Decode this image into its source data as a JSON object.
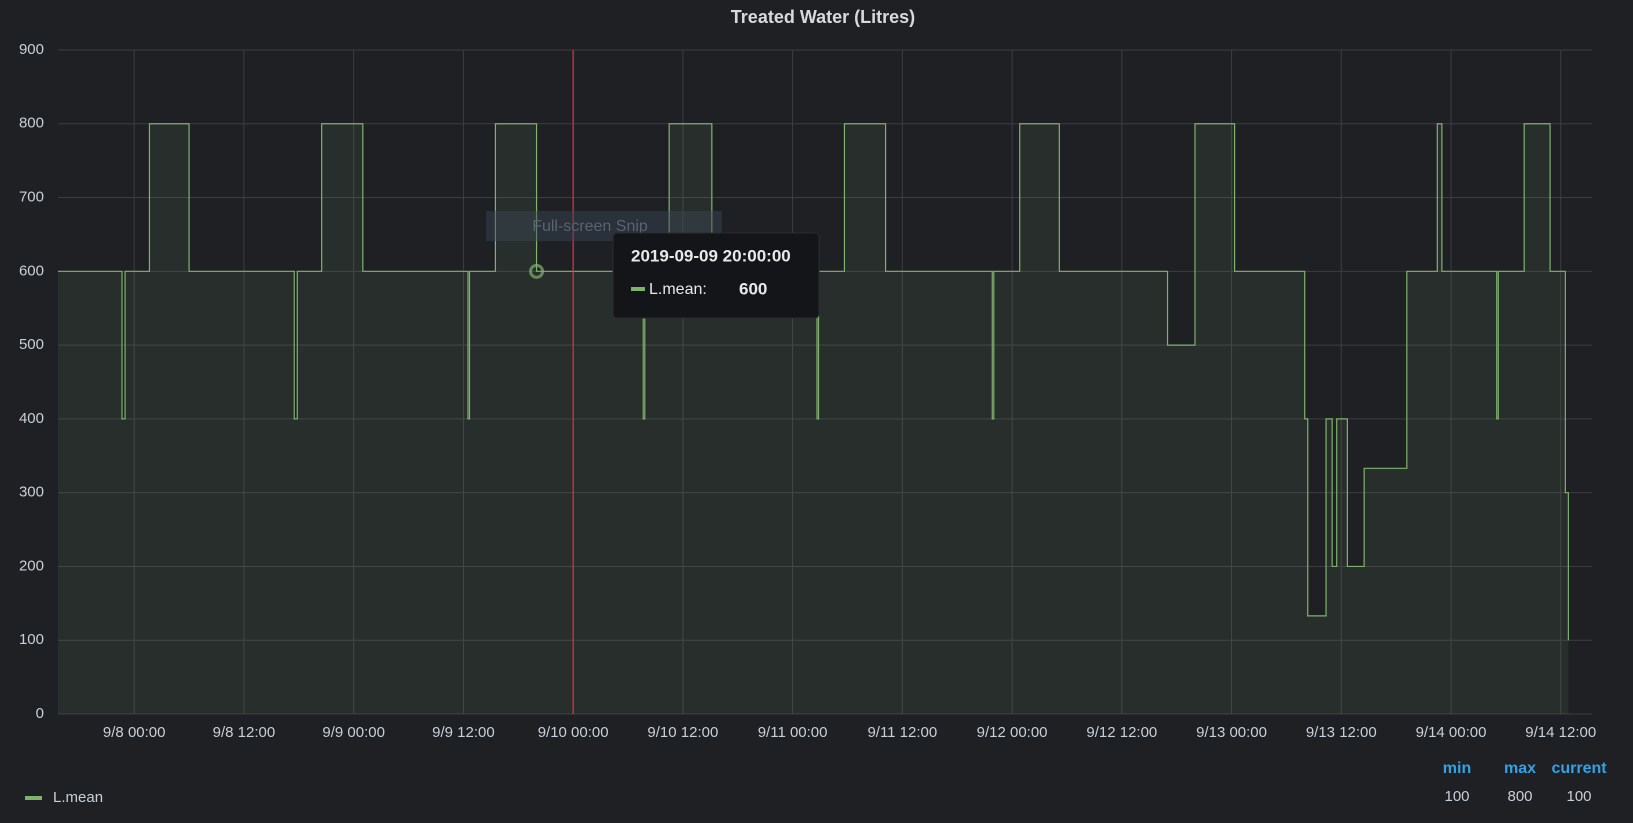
{
  "chart_data": {
    "type": "line",
    "step": true,
    "title": "Treated Water (Litres)",
    "xlim": [
      "9/7 15:40",
      "9/14 15:25"
    ],
    "xticks": [
      "9/8 00:00",
      "9/8 12:00",
      "9/9 00:00",
      "9/9 12:00",
      "9/10 00:00",
      "9/10 12:00",
      "9/11 00:00",
      "9/11 12:00",
      "9/12 00:00",
      "9/12 12:00",
      "9/13 00:00",
      "9/13 12:00",
      "9/14 00:00",
      "9/14 12:00"
    ],
    "ylim": [
      0,
      900
    ],
    "yticks": [
      0,
      100,
      200,
      300,
      400,
      500,
      600,
      700,
      800,
      900
    ],
    "grid": true,
    "x": [
      "9/7 15:40",
      "9/7 22:40",
      "9/7 23:00",
      "9/8 01:40",
      "9/8 06:00",
      "9/8 17:30",
      "9/8 17:50",
      "9/8 20:30",
      "9/9 01:00",
      "9/9 12:30",
      "9/9 12:40",
      "9/9 15:30",
      "9/9 20:00",
      "9/10 07:40",
      "9/10 07:50",
      "9/10 10:30",
      "9/10 15:10",
      "9/11 02:40",
      "9/11 02:50",
      "9/11 05:40",
      "9/11 10:10",
      "9/11 21:50",
      "9/11 22:00",
      "9/12 00:50",
      "9/12 05:10",
      "9/12 17:00",
      "9/12 20:00",
      "9/13 00:20",
      "9/13 08:00",
      "9/13 08:20",
      "9/13 10:20",
      "9/13 11:00",
      "9/13 11:30",
      "9/13 12:40",
      "9/13 14:30",
      "9/13 19:10",
      "9/13 22:30",
      "9/13 23:00",
      "9/14 05:00",
      "9/14 05:10",
      "9/14 08:00",
      "9/14 10:50",
      "9/14 12:30",
      "9/14 12:50"
    ],
    "series": [
      {
        "name": "L.mean",
        "color": "#7eb26d",
        "values": [
          600,
          400,
          600,
          800,
          600,
          400,
          600,
          800,
          600,
          400,
          600,
          800,
          600,
          400,
          600,
          800,
          600,
          400,
          600,
          800,
          600,
          400,
          600,
          800,
          600,
          500,
          800,
          600,
          400,
          133,
          400,
          200,
          400,
          200,
          333,
          600,
          800,
          600,
          400,
          600,
          800,
          600,
          300,
          100
        ]
      }
    ],
    "annotation_x": "9/10 00:00",
    "annotation_color": "#e02f44",
    "overlay_text": "Full-screen Snip",
    "tooltip": {
      "time": "2019-09-09 20:00:00",
      "label": "L.mean:",
      "value": 600
    },
    "legend": {
      "columns": [
        "min",
        "max",
        "current"
      ],
      "stats": [
        100,
        800,
        100
      ]
    }
  }
}
